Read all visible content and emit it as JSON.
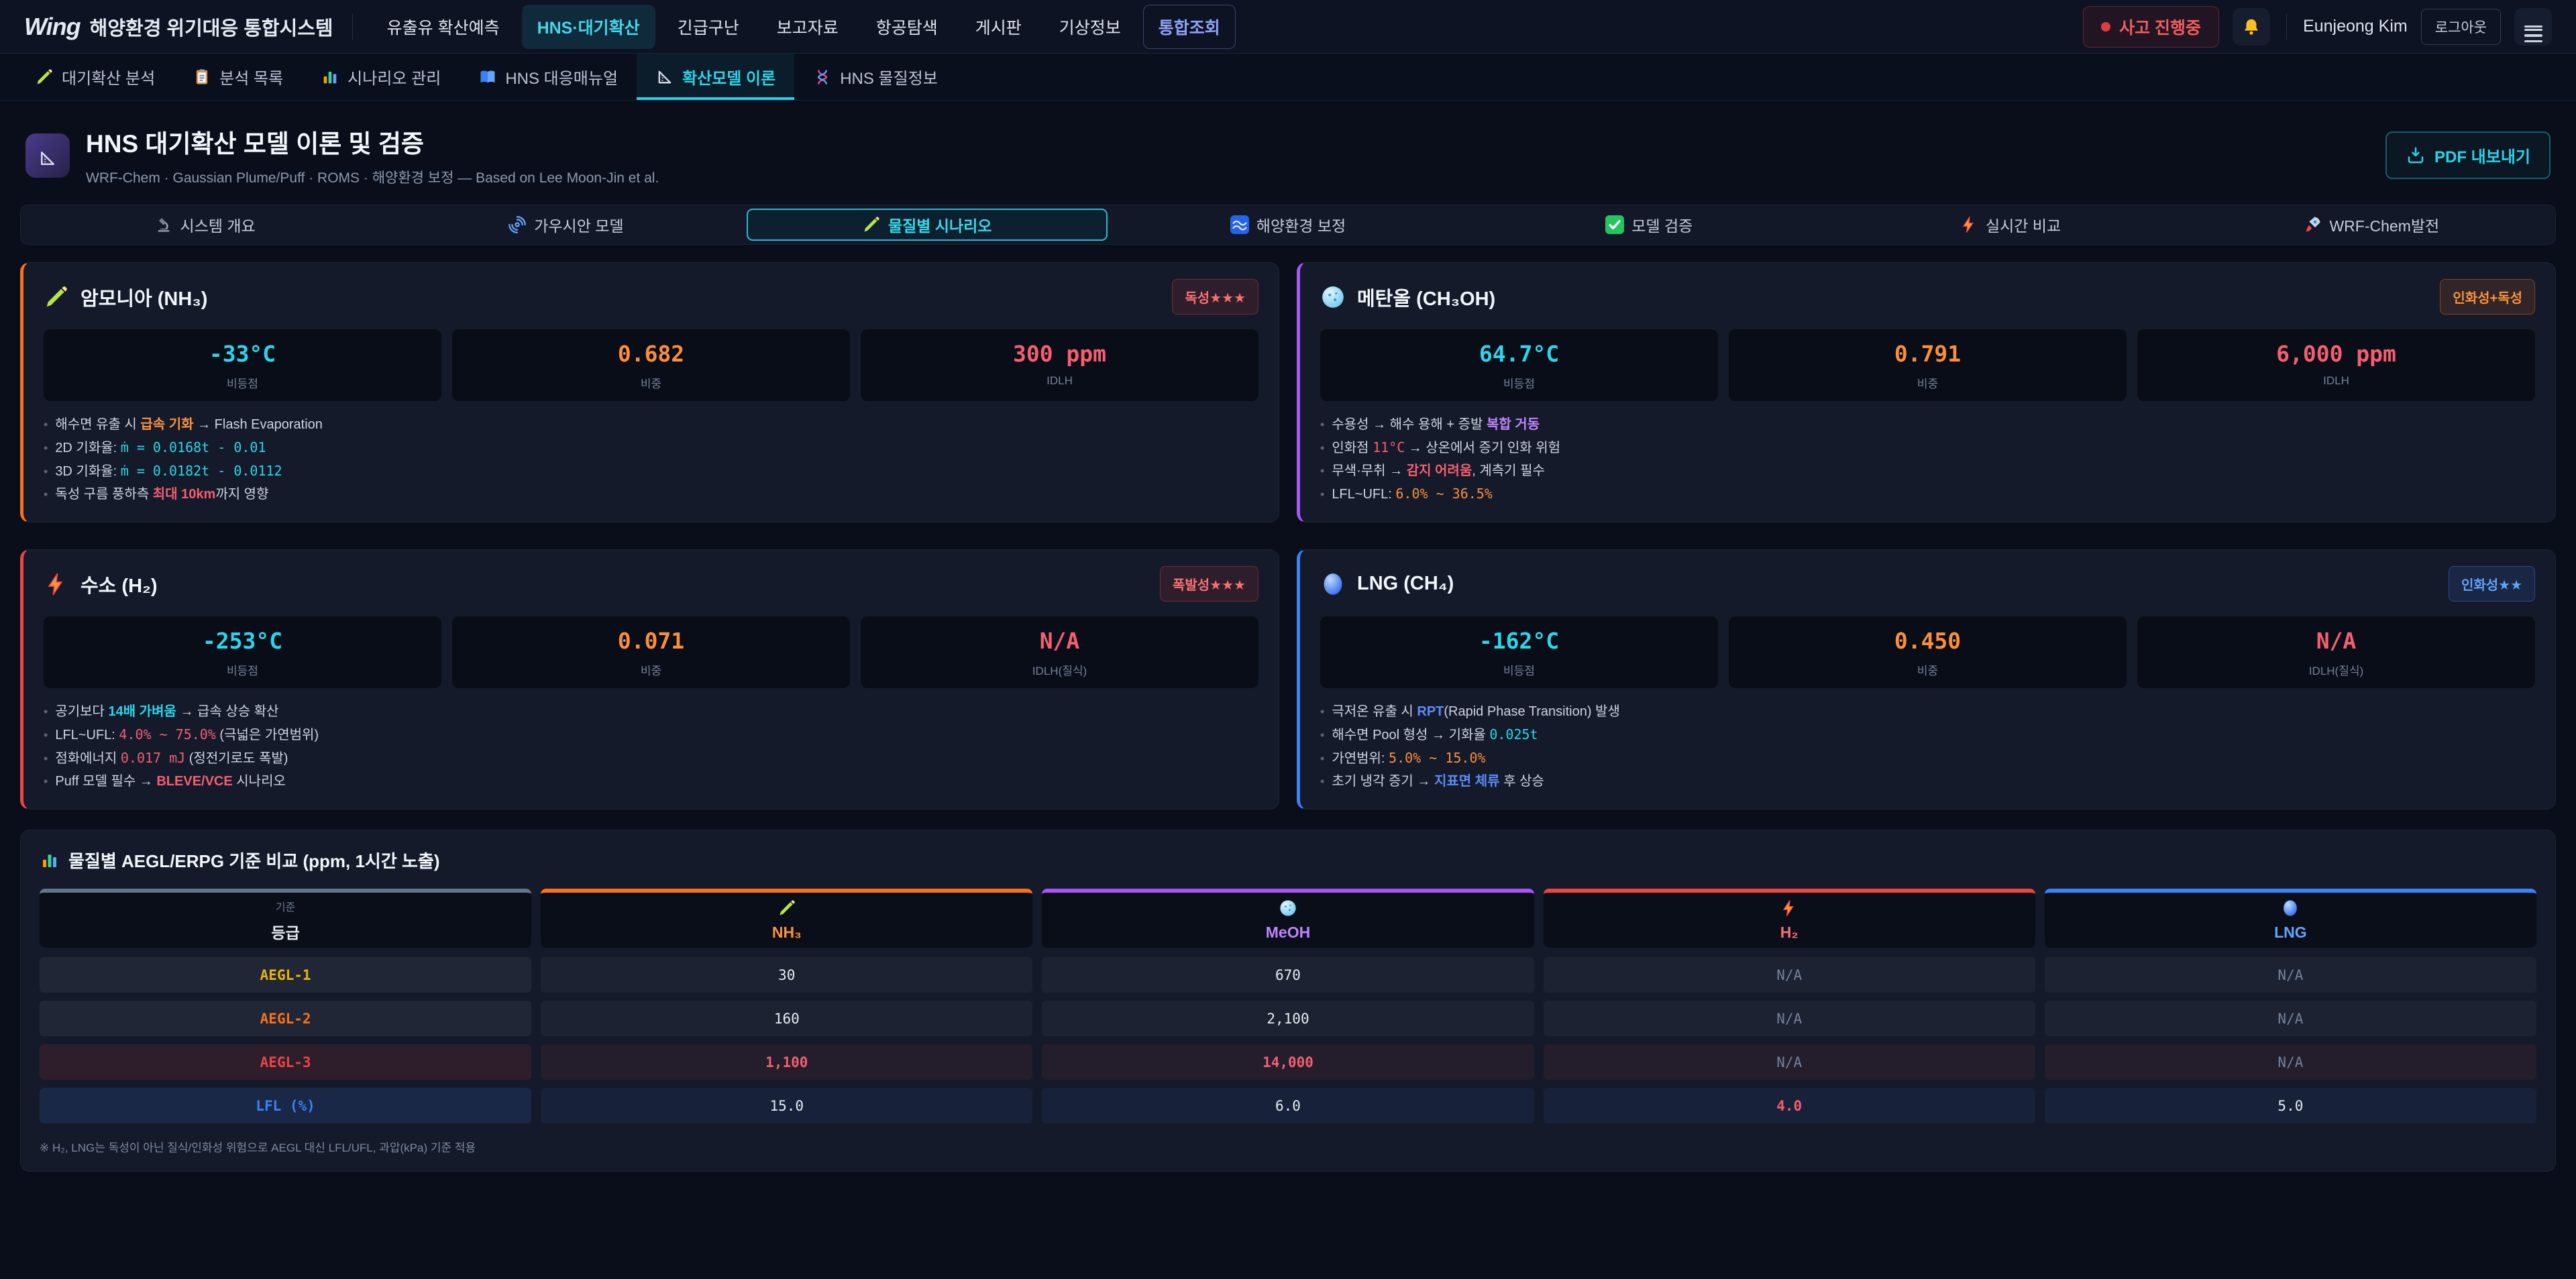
{
  "colors": {
    "accent_cyan": "#22d3ee",
    "accent_orange": "#f97316",
    "accent_purple": "#a855f7",
    "accent_red": "#ef4444",
    "accent_blue": "#3b82f6",
    "gold": "#eab308",
    "page_bg": "#0a0e1a",
    "panel_bg": "#141a2a"
  },
  "topbar": {
    "logo_mark": "Wing",
    "app_title": "해양환경 위기대응 통합시스템",
    "menu": [
      {
        "label": "유출유 확산예측",
        "active": false,
        "accent": false
      },
      {
        "label": "HNS·대기확산",
        "active": true,
        "accent": false
      },
      {
        "label": "긴급구난",
        "active": false,
        "accent": false
      },
      {
        "label": "보고자료",
        "active": false,
        "accent": false
      },
      {
        "label": "항공탐색",
        "active": false,
        "accent": false
      },
      {
        "label": "게시판",
        "active": false,
        "accent": false
      },
      {
        "label": "기상정보",
        "active": false,
        "accent": false
      },
      {
        "label": "통합조회",
        "active": false,
        "accent": true
      }
    ],
    "incident_badge": "사고 진행중",
    "bell_icon": "bell",
    "user_name": "Eunjeong Kim",
    "logout_label": "로그아웃",
    "menu_icon": "hamburger"
  },
  "subnav": [
    {
      "label": "대기확산 분석",
      "icon": "pencil",
      "active": false
    },
    {
      "label": "분석 목록",
      "icon": "clipboard",
      "active": false
    },
    {
      "label": "시나리오 관리",
      "icon": "chart-bars",
      "active": false
    },
    {
      "label": "HNS 대응매뉴얼",
      "icon": "book",
      "active": false
    },
    {
      "label": "확산모델 이론",
      "icon": "triangle-ruler",
      "active": true
    },
    {
      "label": "HNS 물질정보",
      "icon": "dna",
      "active": false
    }
  ],
  "page_header": {
    "icon": "triangle-ruler",
    "title": "HNS 대기확산 모델 이론 및 검증",
    "subtitle": "WRF-Chem · Gaussian Plume/Puff · ROMS · 해양환경 보정 — Based on Lee Moon-Jin et al.",
    "export_button": "PDF 내보내기",
    "export_icon": "download"
  },
  "section_tabs": [
    {
      "label": "시스템 개요",
      "icon": "microscope",
      "active": false
    },
    {
      "label": "가우시안 모델",
      "icon": "cyclone",
      "active": false
    },
    {
      "label": "물질별 시나리오",
      "icon": "pencil",
      "active": true
    },
    {
      "label": "해양환경 보정",
      "icon": "wave",
      "active": false
    },
    {
      "label": "모델 검증",
      "icon": "check",
      "active": false
    },
    {
      "label": "실시간 비교",
      "icon": "lightning",
      "active": false
    },
    {
      "label": "WRF-Chem발전",
      "icon": "rocket",
      "active": false
    }
  ],
  "substance_cards": [
    {
      "id": "ammonia",
      "accent": "#f97316",
      "icon": "pencil",
      "title": "암모니아 (NH₃)",
      "badge": {
        "label": "독성★★★",
        "tone": "red"
      },
      "stats": [
        {
          "value": "-33°C",
          "label": "비등점",
          "color": "cyan"
        },
        {
          "value": "0.682",
          "label": "비중",
          "color": "orange"
        },
        {
          "value": "300 ppm",
          "label": "IDLH",
          "color": "red"
        }
      ],
      "bullets": [
        [
          {
            "t": "해수면 유출 시 "
          },
          {
            "t": "급속 기화",
            "s": "hl-orange"
          },
          {
            "t": " → Flash Evaporation"
          }
        ],
        [
          {
            "t": "2D 기화율: "
          },
          {
            "t": "ṁ = 0.0168t - 0.01",
            "s": "mono-cyan"
          }
        ],
        [
          {
            "t": "3D 기화율: "
          },
          {
            "t": "ṁ = 0.0182t - 0.0112",
            "s": "mono-cyan"
          }
        ],
        [
          {
            "t": "독성 구름 풍하측 "
          },
          {
            "t": "최대 10km",
            "s": "hl-red"
          },
          {
            "t": "까지 영향"
          }
        ]
      ]
    },
    {
      "id": "methanol",
      "accent": "#a855f7",
      "icon": "circle-dotted",
      "title": "메탄올 (CH₃OH)",
      "badge": {
        "label": "인화성+독성",
        "tone": "orange"
      },
      "stats": [
        {
          "value": "64.7°C",
          "label": "비등점",
          "color": "cyan"
        },
        {
          "value": "0.791",
          "label": "비중",
          "color": "orange"
        },
        {
          "value": "6,000 ppm",
          "label": "IDLH",
          "color": "red"
        }
      ],
      "bullets": [
        [
          {
            "t": "수용성 → 해수 용해 + 증발 "
          },
          {
            "t": "복합 거동",
            "s": "hl-purple"
          }
        ],
        [
          {
            "t": "인화점 "
          },
          {
            "t": "11°C",
            "s": "mono-red"
          },
          {
            "t": " → 상온에서 증기 인화 위험"
          }
        ],
        [
          {
            "t": "무색·무취 → "
          },
          {
            "t": "감지 어려움",
            "s": "hl-red"
          },
          {
            "t": ", 계측기 필수"
          }
        ],
        [
          {
            "t": "LFL~UFL: "
          },
          {
            "t": "6.0% ~ 36.5%",
            "s": "mono-orange"
          }
        ]
      ]
    },
    {
      "id": "hydrogen",
      "accent": "#ef4444",
      "icon": "lightning",
      "title": "수소 (H₂)",
      "badge": {
        "label": "폭발성★★★",
        "tone": "red"
      },
      "stats": [
        {
          "value": "-253°C",
          "label": "비등점",
          "color": "cyan"
        },
        {
          "value": "0.071",
          "label": "비중",
          "color": "orange"
        },
        {
          "value": "N/A",
          "label": "IDLH(질식)",
          "color": "red"
        }
      ],
      "bullets": [
        [
          {
            "t": "공기보다 "
          },
          {
            "t": "14배 가벼움",
            "s": "hl-cyan"
          },
          {
            "t": " → 급속 상승 확산"
          }
        ],
        [
          {
            "t": "LFL~UFL: "
          },
          {
            "t": "4.0% ~ 75.0%",
            "s": "mono-red"
          },
          {
            "t": " (극넓은 가연범위)"
          }
        ],
        [
          {
            "t": "점화에너지 "
          },
          {
            "t": "0.017 mJ",
            "s": "mono-red"
          },
          {
            "t": " (정전기로도 폭발)"
          }
        ],
        [
          {
            "t": "Puff 모델 필수 → "
          },
          {
            "t": "BLEVE/VCE",
            "s": "hl-red"
          },
          {
            "t": " 시나리오"
          }
        ]
      ]
    },
    {
      "id": "lng",
      "accent": "#3b82f6",
      "icon": "circle-blue",
      "title": "LNG (CH₄)",
      "badge": {
        "label": "인화성★★",
        "tone": "blue"
      },
      "stats": [
        {
          "value": "-162°C",
          "label": "비등점",
          "color": "cyan"
        },
        {
          "value": "0.450",
          "label": "비중",
          "color": "orange"
        },
        {
          "value": "N/A",
          "label": "IDLH(질식)",
          "color": "red"
        }
      ],
      "bullets": [
        [
          {
            "t": "극저온 유출 시 "
          },
          {
            "t": "RPT",
            "s": "hl-blue"
          },
          {
            "t": "(Rapid Phase Transition) 발생"
          }
        ],
        [
          {
            "t": "해수면 Pool 형성 → 기화율 "
          },
          {
            "t": "0.025t",
            "s": "mono-cyan"
          }
        ],
        [
          {
            "t": "가연범위: "
          },
          {
            "t": "5.0% ~ 15.0%",
            "s": "mono-orange"
          }
        ],
        [
          {
            "t": "초기 냉각 증기 → "
          },
          {
            "t": "지표면 체류",
            "s": "hl-blue"
          },
          {
            "t": " 후 상승"
          }
        ]
      ]
    }
  ],
  "comparison_table": {
    "title": "물질별 AEGL/ERPG 기준 비교 (ppm, 1시간 노출)",
    "title_icon": "chart-bars",
    "columns": [
      {
        "top_label": "기준",
        "label": "등급",
        "accent": "#64748b",
        "color": "#e5e9f0",
        "icon": null
      },
      {
        "label": "NH₃",
        "accent": "#f97316",
        "color": "#fb923c",
        "icon": "pencil"
      },
      {
        "label": "MeOH",
        "accent": "#a855f7",
        "color": "#c084fc",
        "icon": "circle-dotted"
      },
      {
        "label": "H₂",
        "accent": "#ef4444",
        "color": "#f87171",
        "icon": "lightning"
      },
      {
        "label": "LNG",
        "accent": "#3b82f6",
        "color": "#60a5fa",
        "icon": "circle-blue"
      }
    ],
    "rows": [
      {
        "label": "AEGL-1",
        "label_color": "#eab308",
        "tint": "none",
        "values": [
          {
            "t": "30",
            "c": "white"
          },
          {
            "t": "670",
            "c": "white"
          },
          {
            "t": "N/A",
            "c": "muted"
          },
          {
            "t": "N/A",
            "c": "muted"
          }
        ]
      },
      {
        "label": "AEGL-2",
        "label_color": "#f97316",
        "tint": "none",
        "values": [
          {
            "t": "160",
            "c": "white"
          },
          {
            "t": "2,100",
            "c": "white"
          },
          {
            "t": "N/A",
            "c": "muted"
          },
          {
            "t": "N/A",
            "c": "muted"
          }
        ]
      },
      {
        "label": "AEGL-3",
        "label_color": "#ef4444",
        "tint": "red",
        "values": [
          {
            "t": "1,100",
            "c": "red"
          },
          {
            "t": "14,000",
            "c": "red"
          },
          {
            "t": "N/A",
            "c": "muted"
          },
          {
            "t": "N/A",
            "c": "muted"
          }
        ]
      },
      {
        "label": "LFL (%)",
        "label_color": "#3b82f6",
        "tint": "blue",
        "values": [
          {
            "t": "15.0",
            "c": "white"
          },
          {
            "t": "6.0",
            "c": "white"
          },
          {
            "t": "4.0",
            "c": "red"
          },
          {
            "t": "5.0",
            "c": "white"
          }
        ]
      }
    ],
    "footnote": "※ H₂, LNG는 독성이 아닌 질식/인화성 위험으로 AEGL 대신 LFL/UFL, 과압(kPa) 기준 적용"
  }
}
